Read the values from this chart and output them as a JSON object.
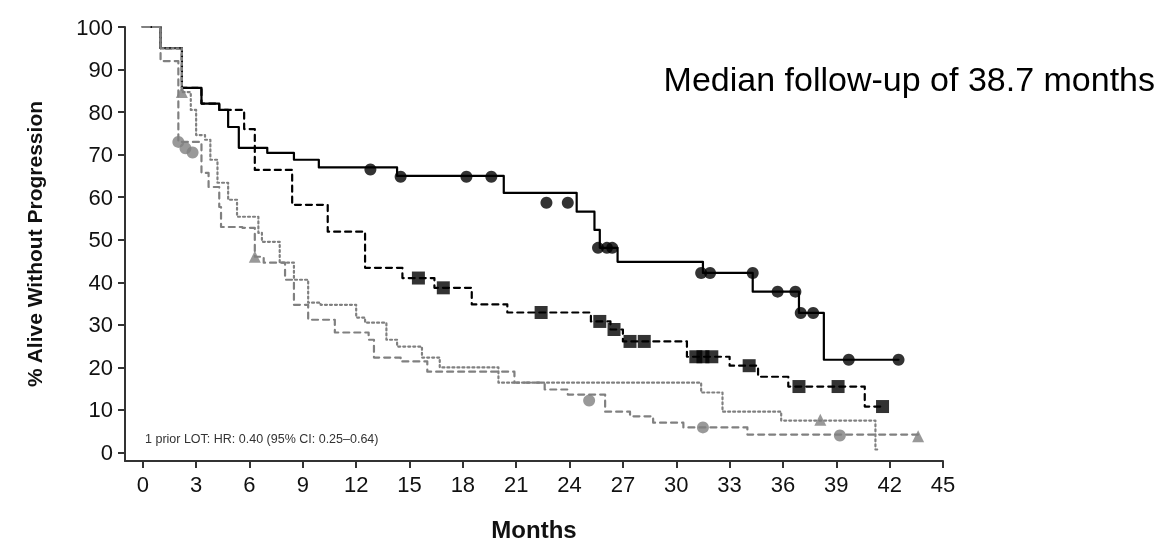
{
  "chart_data": {
    "type": "step",
    "xlabel": "Months",
    "ylabel": "% Alive Without Progression",
    "annotations": [
      "Median follow-up of 38.7 months",
      "1 prior LOT: HR: 0.40 (95% CI: 0.25–0.64)"
    ],
    "xlim": [
      -1,
      45
    ],
    "ylim": [
      -2,
      100
    ],
    "xticks": [
      0,
      3,
      6,
      9,
      12,
      15,
      18,
      21,
      24,
      27,
      30,
      33,
      36,
      39,
      42,
      45
    ],
    "yticks": [
      0,
      10,
      20,
      30,
      40,
      50,
      60,
      70,
      80,
      90,
      100
    ],
    "grid": false,
    "series": [
      {
        "color": "#000000",
        "line_style": "solid",
        "marker": "none",
        "x": [
          0,
          1,
          2.2,
          3.3,
          4.3,
          4.8,
          5.4,
          7,
          8.5,
          9.9,
          14.3,
          20.3,
          24.4,
          25.4,
          25.7,
          26.7,
          31.5,
          34.3,
          36.9,
          38.3,
          42.5
        ],
        "values": [
          100,
          95,
          85.7,
          82,
          80.5,
          76.5,
          71.6,
          70.4,
          68.8,
          67,
          65,
          61,
          56.6,
          52.3,
          48.1,
          44.8,
          42.2,
          37.8,
          32.8,
          21.8,
          21.8
        ]
      },
      {
        "color": "#000000",
        "line_style": "dashed",
        "marker": "none",
        "x": [
          0,
          1,
          2.2,
          3.3,
          4.3,
          5.7,
          6.3,
          8.4,
          10.4,
          12.5,
          14.6,
          16.4,
          18.5,
          20.5,
          25.2,
          26.3,
          27,
          30.6,
          33,
          34.6,
          36.3,
          40.6,
          41.6
        ],
        "values": [
          100,
          95,
          85.7,
          82,
          80.5,
          76,
          66.4,
          58.2,
          51.9,
          43.4,
          41,
          38.7,
          34.8,
          32.9,
          30.8,
          28.9,
          26.1,
          22.5,
          20.4,
          17.8,
          15.5,
          10.8,
          10.8
        ]
      },
      {
        "color": "#808080",
        "line_style": "dotted",
        "marker": "none",
        "x": [
          0,
          1,
          2.2,
          2.7,
          3,
          3.5,
          3.8,
          4.2,
          4.8,
          5.3,
          6.5,
          6.7,
          7.7,
          8.5,
          9.3,
          10,
          12,
          12.5,
          13.7,
          14.3,
          15.7,
          16.7,
          20,
          31.4,
          32.6,
          35.9,
          41.2,
          41.3
        ],
        "values": [
          100,
          95,
          84.7,
          80.5,
          74.6,
          73.5,
          68.8,
          63.4,
          59.4,
          55.4,
          51.6,
          49.5,
          44.6,
          40.6,
          35.2,
          34.7,
          31.7,
          30.5,
          26.5,
          24.9,
          22.3,
          20,
          16.4,
          14.1,
          9.6,
          7.5,
          0.7,
          0.7
        ]
      },
      {
        "color": "#808080",
        "line_style": "dashed",
        "marker": "none",
        "x": [
          0,
          1,
          2,
          3.3,
          3.7,
          4.3,
          4.4,
          5.6,
          6.3,
          6.8,
          8,
          8.5,
          9.3,
          10.8,
          12.7,
          13,
          14.5,
          16,
          20.9,
          22.6,
          23.9,
          26,
          27.4,
          28.7,
          30.4,
          34,
          43.6
        ],
        "values": [
          100,
          92,
          73,
          65.7,
          62.4,
          57.7,
          53,
          52.8,
          46,
          44.6,
          40.6,
          34.7,
          31.2,
          28.2,
          26.5,
          22.3,
          21.4,
          19,
          16.4,
          14.8,
          13.6,
          9.6,
          8.5,
          7,
          5.9,
          4.2,
          4.2
        ]
      },
      {
        "type": "scatter",
        "color": "#000000",
        "marker": "circle",
        "x": [
          12.8,
          14.5,
          18.2,
          19.6,
          22.7,
          23.9,
          25.6,
          26.1,
          26.4,
          31.4,
          31.9,
          34.3,
          35.7,
          36.7,
          37,
          37.7,
          39.7,
          42.5
        ],
        "values": [
          66.5,
          64.8,
          64.8,
          64.8,
          58.7,
          58.7,
          48.1,
          48.1,
          48.1,
          42.2,
          42.2,
          42.2,
          37.8,
          37.8,
          32.8,
          32.8,
          21.8,
          21.8
        ]
      },
      {
        "type": "scatter",
        "color": "#000000",
        "marker": "square",
        "x": [
          15.5,
          16.9,
          22.4,
          25.7,
          26.5,
          27.4,
          28.2,
          31.1,
          31.5,
          32,
          34.1,
          36.9,
          39.1,
          41.6
        ],
        "values": [
          41,
          38.7,
          32.9,
          30.8,
          28.9,
          26.1,
          26.1,
          22.5,
          22.5,
          22.5,
          20.4,
          15.5,
          15.5,
          10.8
        ]
      },
      {
        "type": "scatter",
        "color": "#808080",
        "marker": "triangle",
        "x": [
          2.2,
          6.3,
          38.1,
          43.6
        ],
        "values": [
          84.7,
          46,
          7.7,
          3.8
        ]
      },
      {
        "type": "scatter",
        "color": "#808080",
        "marker": "circle",
        "x": [
          2,
          2.4,
          2.8,
          25.1,
          31.5,
          39.2
        ],
        "values": [
          73,
          71.5,
          70.5,
          12.2,
          5.9,
          4
        ]
      }
    ]
  }
}
